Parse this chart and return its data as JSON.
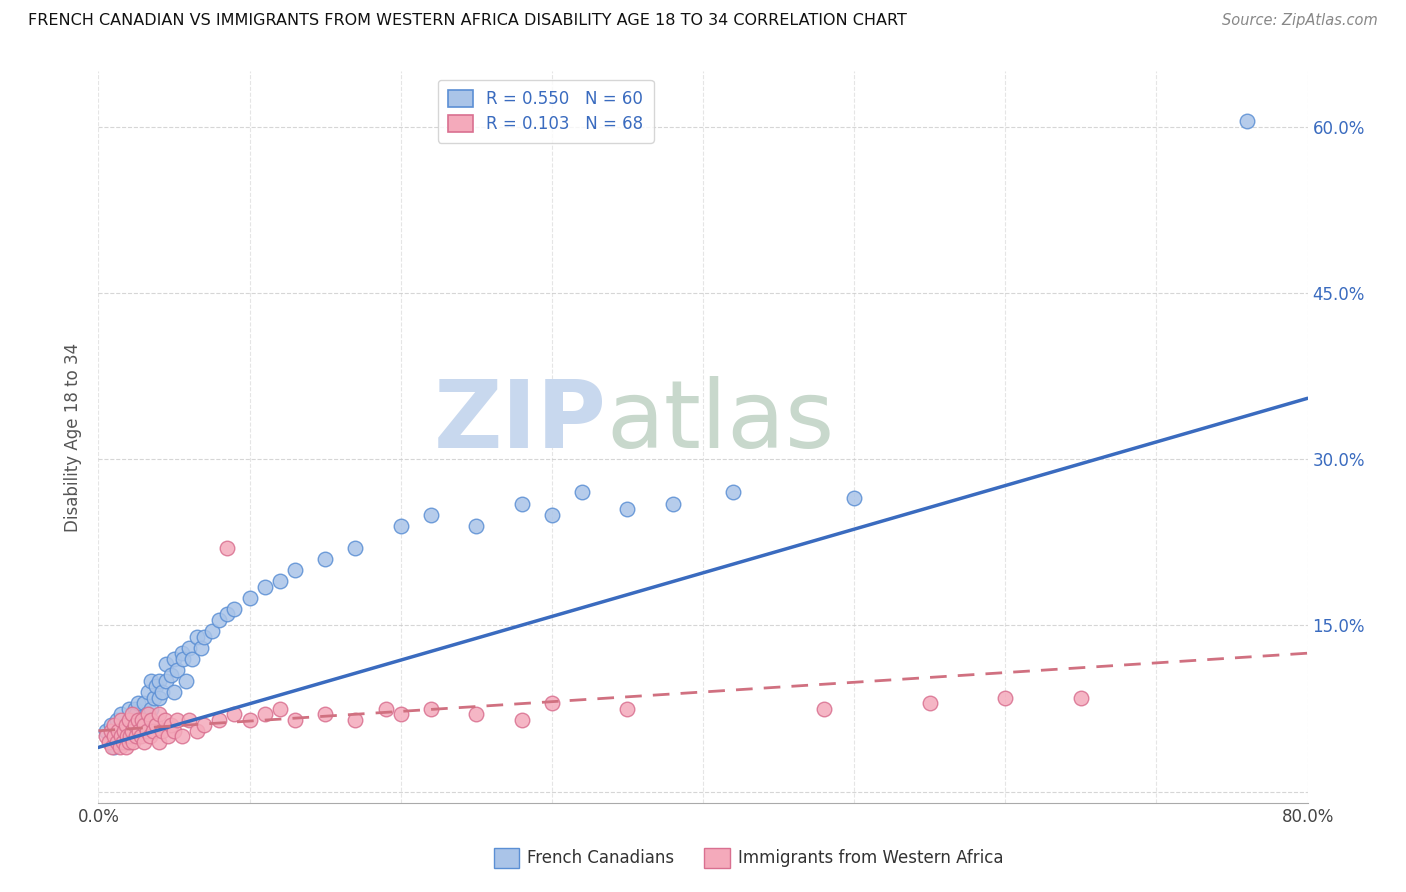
{
  "title": "FRENCH CANADIAN VS IMMIGRANTS FROM WESTERN AFRICA DISABILITY AGE 18 TO 34 CORRELATION CHART",
  "source": "Source: ZipAtlas.com",
  "ylabel": "Disability Age 18 to 34",
  "blue_R": 0.55,
  "blue_N": 60,
  "pink_R": 0.103,
  "pink_N": 68,
  "blue_color": "#aac4e8",
  "pink_color": "#f4aabb",
  "blue_edge_color": "#5b8fd4",
  "pink_edge_color": "#d97090",
  "blue_line_color": "#3a6bbf",
  "pink_line_color": "#d07080",
  "legend_blue_label": "French Canadians",
  "legend_pink_label": "Immigrants from Western Africa",
  "watermark_zip": "ZIP",
  "watermark_atlas": "atlas",
  "watermark_color_zip": "#c8d8ee",
  "watermark_color_atlas": "#c8d8cc",
  "background_color": "#ffffff",
  "grid_color": "#cccccc",
  "title_color": "#111111",
  "blue_scatter_x": [
    0.005,
    0.008,
    0.01,
    0.012,
    0.014,
    0.015,
    0.016,
    0.018,
    0.02,
    0.02,
    0.022,
    0.024,
    0.025,
    0.026,
    0.028,
    0.03,
    0.032,
    0.033,
    0.035,
    0.035,
    0.037,
    0.038,
    0.04,
    0.04,
    0.042,
    0.045,
    0.045,
    0.048,
    0.05,
    0.05,
    0.052,
    0.055,
    0.056,
    0.058,
    0.06,
    0.062,
    0.065,
    0.068,
    0.07,
    0.075,
    0.08,
    0.085,
    0.09,
    0.1,
    0.11,
    0.12,
    0.13,
    0.15,
    0.17,
    0.2,
    0.22,
    0.25,
    0.28,
    0.3,
    0.32,
    0.35,
    0.38,
    0.42,
    0.5,
    0.76
  ],
  "blue_scatter_y": [
    0.055,
    0.06,
    0.04,
    0.065,
    0.05,
    0.07,
    0.055,
    0.06,
    0.05,
    0.075,
    0.065,
    0.075,
    0.07,
    0.08,
    0.06,
    0.08,
    0.07,
    0.09,
    0.075,
    0.1,
    0.085,
    0.095,
    0.085,
    0.1,
    0.09,
    0.1,
    0.115,
    0.105,
    0.09,
    0.12,
    0.11,
    0.125,
    0.12,
    0.1,
    0.13,
    0.12,
    0.14,
    0.13,
    0.14,
    0.145,
    0.155,
    0.16,
    0.165,
    0.175,
    0.185,
    0.19,
    0.2,
    0.21,
    0.22,
    0.24,
    0.25,
    0.24,
    0.26,
    0.25,
    0.27,
    0.255,
    0.26,
    0.27,
    0.265,
    0.605
  ],
  "pink_scatter_x": [
    0.005,
    0.007,
    0.008,
    0.009,
    0.01,
    0.01,
    0.012,
    0.013,
    0.014,
    0.015,
    0.015,
    0.016,
    0.017,
    0.018,
    0.018,
    0.019,
    0.02,
    0.02,
    0.021,
    0.022,
    0.022,
    0.023,
    0.024,
    0.025,
    0.026,
    0.027,
    0.028,
    0.029,
    0.03,
    0.03,
    0.032,
    0.033,
    0.034,
    0.035,
    0.036,
    0.038,
    0.04,
    0.04,
    0.042,
    0.044,
    0.046,
    0.048,
    0.05,
    0.052,
    0.055,
    0.06,
    0.065,
    0.07,
    0.08,
    0.085,
    0.09,
    0.1,
    0.11,
    0.12,
    0.13,
    0.15,
    0.17,
    0.19,
    0.2,
    0.22,
    0.25,
    0.28,
    0.3,
    0.35,
    0.48,
    0.55,
    0.6,
    0.65
  ],
  "pink_scatter_y": [
    0.05,
    0.045,
    0.055,
    0.04,
    0.05,
    0.06,
    0.045,
    0.055,
    0.04,
    0.05,
    0.065,
    0.045,
    0.055,
    0.04,
    0.06,
    0.05,
    0.045,
    0.065,
    0.05,
    0.055,
    0.07,
    0.045,
    0.06,
    0.05,
    0.065,
    0.055,
    0.05,
    0.065,
    0.045,
    0.06,
    0.055,
    0.07,
    0.05,
    0.065,
    0.055,
    0.06,
    0.045,
    0.07,
    0.055,
    0.065,
    0.05,
    0.06,
    0.055,
    0.065,
    0.05,
    0.065,
    0.055,
    0.06,
    0.065,
    0.22,
    0.07,
    0.065,
    0.07,
    0.075,
    0.065,
    0.07,
    0.065,
    0.075,
    0.07,
    0.075,
    0.07,
    0.065,
    0.08,
    0.075,
    0.075,
    0.08,
    0.085,
    0.085
  ],
  "xlim": [
    0.0,
    0.8
  ],
  "ylim": [
    -0.01,
    0.65
  ],
  "xticks": [
    0.0,
    0.1,
    0.2,
    0.3,
    0.4,
    0.5,
    0.6,
    0.7,
    0.8
  ],
  "yticks": [
    0.0,
    0.15,
    0.3,
    0.45,
    0.6
  ],
  "blue_trend_x0": 0.0,
  "blue_trend_x1": 0.8,
  "blue_trend_y0": 0.04,
  "blue_trend_y1": 0.355,
  "pink_trend_x0": 0.0,
  "pink_trend_x1": 0.8,
  "pink_trend_y0": 0.055,
  "pink_trend_y1": 0.125
}
